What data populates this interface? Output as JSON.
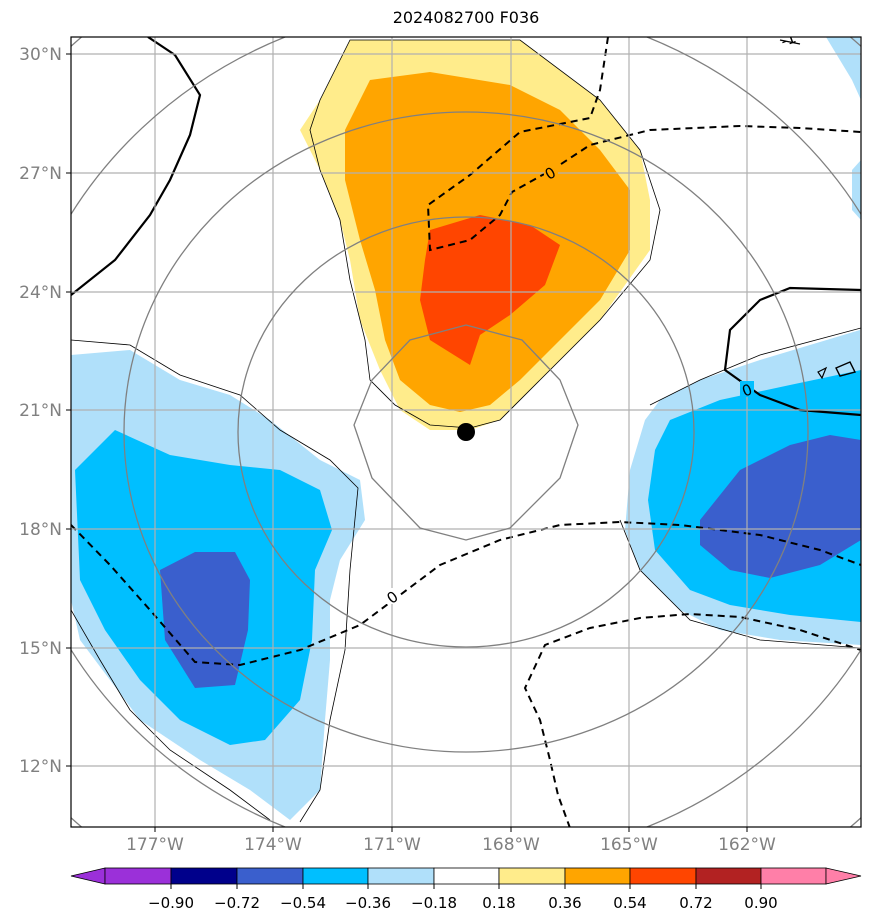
{
  "title": "2024082700 F036",
  "lat_labels": [
    "30°N",
    "27°N",
    "24°N",
    "21°N",
    "18°N",
    "15°N",
    "12°N"
  ],
  "lon_labels": [
    "177°W",
    "174°W",
    "171°W",
    "168°W",
    "165°W",
    "162°W"
  ],
  "contour_labels": [
    "0",
    "0",
    "0",
    "-1"
  ],
  "center_marker": "storm-center-dot",
  "colorbar": {
    "ticks": [
      "−0.90",
      "−0.72",
      "−0.54",
      "−0.36",
      "−0.18",
      "0.18",
      "0.36",
      "0.54",
      "0.72",
      "0.90"
    ],
    "colors": [
      "#9b30d9",
      "#00008b",
      "#3a5fcd",
      "#00bfff",
      "#b0e0fa",
      "#ffffff",
      "#ffec8b",
      "#ffa500",
      "#ff4500",
      "#b22222",
      "#ff7fa8"
    ]
  },
  "colors": {
    "grid": "#b0b0b0",
    "range_rings": "#808080",
    "axis_label": "#808080"
  }
}
